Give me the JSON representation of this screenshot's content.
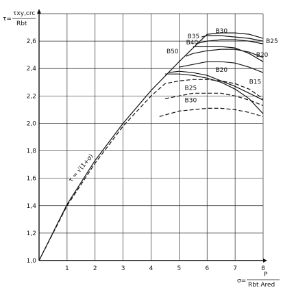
{
  "chart_data": {
    "type": "line",
    "xlim": [
      0,
      8
    ],
    "ylim": [
      1.0,
      2.8
    ],
    "x_ticks": [
      "1",
      "2",
      "3",
      "4",
      "5",
      "6",
      "7",
      "8"
    ],
    "y_ticks": [
      "1,0",
      "1,2",
      "1,4",
      "1,6",
      "1,8",
      "2,0",
      "2,2",
      "2,4",
      "2,6"
    ],
    "y_axis_label": {
      "tau": "τ=",
      "num": "τxy,crc",
      "den": "Rbt"
    },
    "x_axis_label": {
      "sigma": "σ=",
      "num": "P",
      "den": "Rbt Ared"
    },
    "formula": "τ = √(1+σ)",
    "grid": true,
    "series": [
      {
        "name": "B30",
        "style": "solid",
        "x": [
          0,
          1,
          2,
          3,
          4,
          5,
          5.8,
          6,
          6.5,
          7,
          7.5,
          8
        ],
        "y": [
          1,
          1.41,
          1.73,
          2,
          2.24,
          2.45,
          2.61,
          2.65,
          2.66,
          2.66,
          2.65,
          2.62
        ]
      },
      {
        "name": "B35",
        "style": "solid",
        "x": [
          5.8,
          6,
          6.5,
          7,
          7.5,
          8
        ],
        "y": [
          2.63,
          2.64,
          2.64,
          2.63,
          2.62,
          2.6
        ]
      },
      {
        "name": "B40",
        "style": "solid",
        "x": [
          5.6,
          6,
          6.5,
          7,
          7.5,
          8
        ],
        "y": [
          2.58,
          2.6,
          2.61,
          2.61,
          2.6,
          2.58
        ]
      },
      {
        "name": "B25",
        "style": "solid",
        "x": [
          5.5,
          6,
          6.5,
          7,
          7.5,
          8
        ],
        "y": [
          2.56,
          2.56,
          2.56,
          2.55,
          2.51,
          2.45
        ]
      },
      {
        "name": "B50",
        "style": "solid",
        "x": [
          5.25,
          5.5,
          6,
          6.5,
          7,
          7.5,
          8
        ],
        "y": [
          2.49,
          2.51,
          2.53,
          2.54,
          2.54,
          2.52,
          2.48
        ]
      },
      {
        "name": "B20",
        "style": "solid",
        "x": [
          5,
          5.5,
          6,
          6.5,
          7,
          7.5,
          8
        ],
        "y": [
          2.41,
          2.43,
          2.45,
          2.45,
          2.44,
          2.41,
          2.37
        ]
      },
      {
        "name": "B20",
        "style": "solid",
        "x": [
          4.6,
          5,
          5.5,
          6,
          6.5,
          7,
          7.5,
          8
        ],
        "y": [
          2.37,
          2.38,
          2.37,
          2.35,
          2.31,
          2.27,
          2.22,
          2.17
        ]
      },
      {
        "name": "B15",
        "style": "solid",
        "x": [
          4.5,
          5,
          5.5,
          6,
          6.5,
          7,
          7.5,
          8
        ],
        "y": [
          2.36,
          2.36,
          2.35,
          2.33,
          2.3,
          2.25,
          2.18,
          2.07
        ]
      },
      {
        "name": "B20",
        "style": "dashed",
        "x": [
          0,
          1,
          2,
          3,
          4,
          4.5,
          5,
          5.5,
          6,
          6.5,
          7,
          7.5,
          8
        ],
        "y": [
          1,
          1.4,
          1.71,
          1.98,
          2.2,
          2.29,
          2.31,
          2.32,
          2.32,
          2.31,
          2.29,
          2.25,
          2.18
        ]
      },
      {
        "name": "B25",
        "style": "dashed",
        "x": [
          4.5,
          5,
          5.5,
          6,
          6.5,
          7,
          7.5,
          8
        ],
        "y": [
          2.18,
          2.2,
          2.22,
          2.22,
          2.22,
          2.2,
          2.17,
          2.13
        ]
      },
      {
        "name": "B30",
        "style": "dashed",
        "x": [
          4.3,
          5,
          5.5,
          6,
          6.5,
          7,
          7.5,
          8
        ],
        "y": [
          2.05,
          2.09,
          2.1,
          2.11,
          2.11,
          2.1,
          2.08,
          2.05
        ]
      }
    ],
    "curve_labels": [
      {
        "text": "B30",
        "x": 6.3,
        "y": 2.66
      },
      {
        "text": "B35",
        "x": 5.3,
        "y": 2.62
      },
      {
        "text": "B40",
        "x": 5.25,
        "y": 2.575
      },
      {
        "text": "B25",
        "x": 8.1,
        "y": 2.585
      },
      {
        "text": "B50",
        "x": 4.55,
        "y": 2.51
      },
      {
        "text": "B20",
        "x": 7.75,
        "y": 2.485
      },
      {
        "text": "B20",
        "x": 6.3,
        "y": 2.375
      },
      {
        "text": "B15",
        "x": 7.5,
        "y": 2.29
      },
      {
        "text": "B25",
        "x": 5.2,
        "y": 2.245
      },
      {
        "text": "B30",
        "x": 5.2,
        "y": 2.155
      }
    ]
  }
}
